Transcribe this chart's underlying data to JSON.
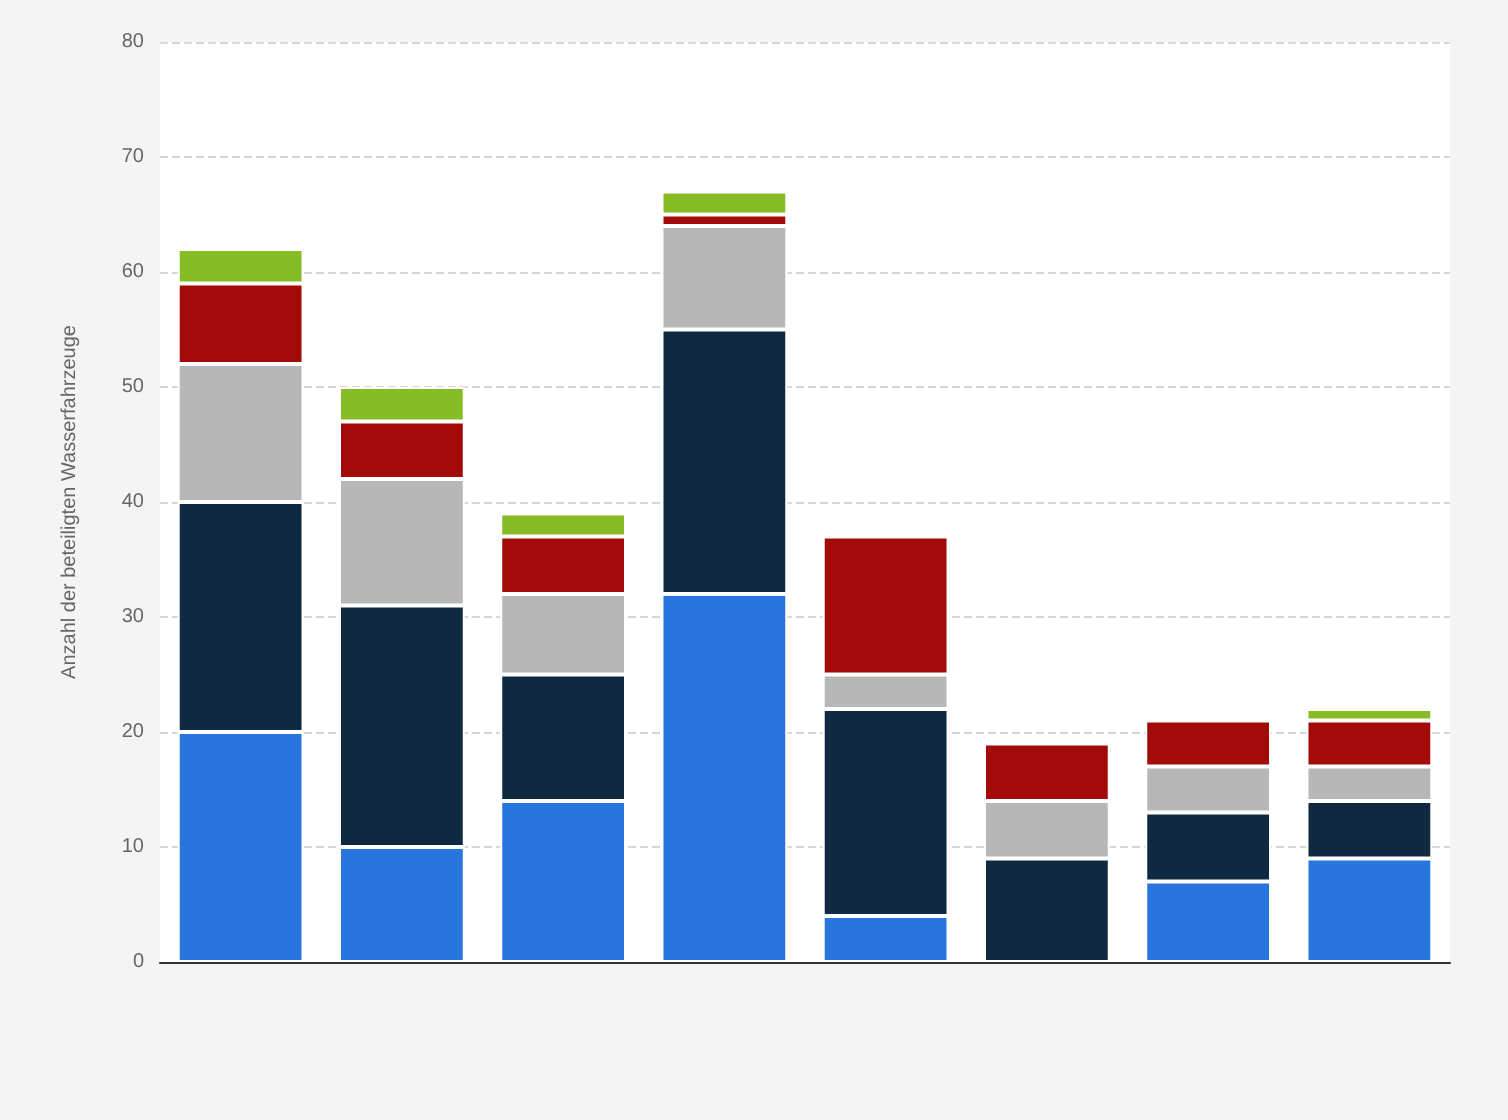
{
  "chart_data": {
    "type": "bar",
    "stacked": true,
    "ylabel": "Anzahl der beteiligten Wasserfahrzeuge",
    "categories": [
      null,
      null,
      null,
      null,
      null,
      null,
      null,
      null
    ],
    "series": [
      {
        "color": "#2876dd",
        "values": [
          20,
          10,
          14,
          32,
          4,
          0,
          7,
          9
        ]
      },
      {
        "color": "#0f2a40",
        "values": [
          20,
          21,
          11,
          23,
          18,
          9,
          6,
          5
        ]
      },
      {
        "color": "#b7b7b7",
        "values": [
          12,
          11,
          7,
          9,
          3,
          5,
          4,
          3
        ]
      },
      {
        "color": "#a30b0b",
        "values": [
          7,
          5,
          5,
          1,
          12,
          5,
          4,
          4
        ]
      },
      {
        "color": "#86bc25",
        "values": [
          3,
          3,
          2,
          2,
          0,
          0,
          0,
          1
        ]
      }
    ],
    "ylim": [
      0,
      80
    ],
    "yticks": [
      0,
      10,
      20,
      30,
      40,
      50,
      60,
      70,
      80
    ],
    "grid": "y"
  }
}
